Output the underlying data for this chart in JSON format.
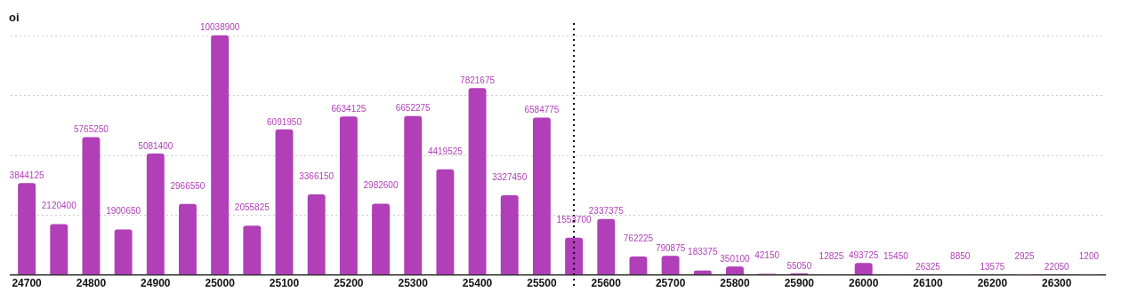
{
  "chart_data": {
    "type": "bar",
    "ylabel": "oi",
    "x": [
      24700,
      24750,
      24800,
      24850,
      24900,
      24950,
      25000,
      25050,
      25100,
      25150,
      25200,
      25250,
      25300,
      25350,
      25400,
      25450,
      25500,
      25550,
      25600,
      25650,
      25700,
      25750,
      25800,
      25850,
      25900,
      25950,
      26000,
      26050,
      26100,
      26150,
      26200,
      26250,
      26300,
      26350
    ],
    "series": [
      {
        "color": "#b03fb8",
        "values": [
          3844125,
          2120400,
          5765250,
          1900650,
          5081400,
          2966550,
          10038900,
          2055825,
          6091950,
          3366150,
          6634125,
          2982600,
          6652275,
          4419525,
          7821675,
          3327450,
          6584775,
          1553700,
          2337375,
          762225,
          790875,
          183375,
          350100,
          42150,
          55050,
          12825,
          493725,
          15450,
          26325,
          8850,
          13575,
          2925,
          22050,
          1200
        ]
      }
    ],
    "xlim": [
      24675,
      26375
    ],
    "xticks": [
      24700,
      24800,
      24900,
      25000,
      25100,
      25200,
      25300,
      25400,
      25500,
      25600,
      25700,
      25800,
      25900,
      26000,
      26100,
      26200,
      26300
    ],
    "ylim": [
      0,
      10100000
    ],
    "yticks": [
      {
        "value": 0,
        "label": null
      },
      {
        "value": 2500000,
        "label": null
      },
      {
        "value": 5000000,
        "label": null
      },
      {
        "value": 7500000,
        "label": null
      },
      {
        "value": 10000000,
        "label": null
      }
    ],
    "tick_labels": "x",
    "grid": "y",
    "data_labels": true,
    "legend": false,
    "ref_lines": [
      {
        "axis": "x",
        "value": 25550,
        "line_style": "dotted",
        "color": "#000000"
      }
    ]
  }
}
